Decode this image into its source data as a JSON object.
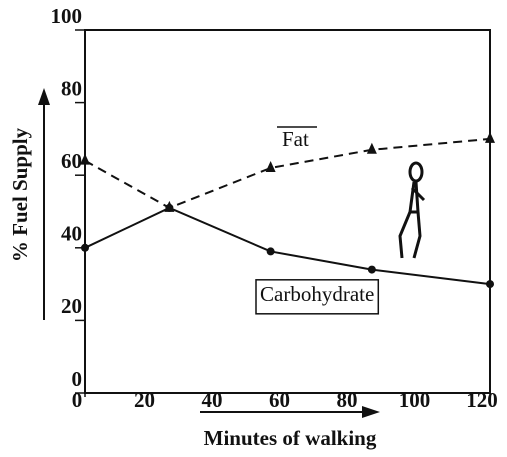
{
  "chart_data": {
    "type": "line",
    "x_label": "Minutes of walking",
    "y_label": "% Fuel Supply",
    "xlim": [
      0,
      120
    ],
    "xticks": [
      0,
      20,
      40,
      60,
      80,
      100,
      120
    ],
    "ylim": [
      0,
      100
    ],
    "yticks": [
      0,
      20,
      40,
      60,
      80,
      100
    ],
    "x": [
      0,
      25,
      55,
      85,
      120
    ],
    "series": [
      {
        "name": "Fat",
        "color": "#111111",
        "line_style": "dashed",
        "marker": "triangle",
        "values": [
          64,
          51,
          62,
          67,
          70
        ]
      },
      {
        "name": "Carbohydrate",
        "color": "#111111",
        "line_style": "solid",
        "marker": "circle",
        "values": [
          40,
          51,
          39,
          34,
          30
        ]
      }
    ]
  }
}
